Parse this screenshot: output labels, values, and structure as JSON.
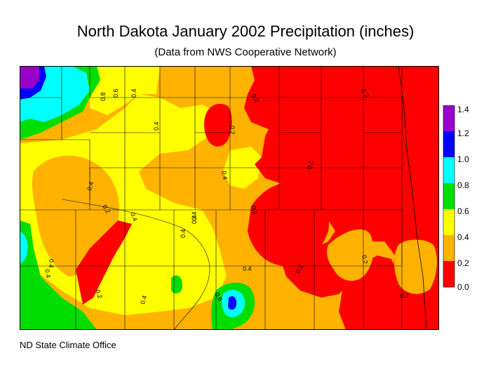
{
  "title": "North Dakota January 2002 Precipitation (inches)",
  "subtitle": "(Data from NWS Cooperative Network)",
  "footer": "ND State Climate Office",
  "colors": {
    "r0": "#ff0000",
    "r02": "#ffb300",
    "r04": "#ffff00",
    "r06": "#00dd00",
    "r08": "#00ffff",
    "r10": "#0000ff",
    "r12": "#9900cc"
  },
  "legend": {
    "labels": [
      "1.4",
      "1.2",
      "1.0",
      "0.8",
      "0.6",
      "0.4",
      "0.2",
      "0.0"
    ]
  },
  "contour_labels": {
    "a": "0.8",
    "b": "0.6",
    "c": "0.4",
    "d": "0.4",
    "e": "0.4",
    "f": "0.2",
    "g": "0.2",
    "h": "0.4",
    "i": "0.4",
    "j": "0.2",
    "k": "0.4",
    "l": "0.4",
    "m": "0.2",
    "n": "0.4",
    "o": "0.4",
    "p": "0.6",
    "q": "0.4",
    "r": "0.2",
    "s": "0.2",
    "t": "0.2",
    "u": "0.2",
    "v": "0.4",
    "w": "0.2",
    "x": "0.4",
    "y": "0.2",
    "z": "0.4",
    "aa": "0.2"
  }
}
